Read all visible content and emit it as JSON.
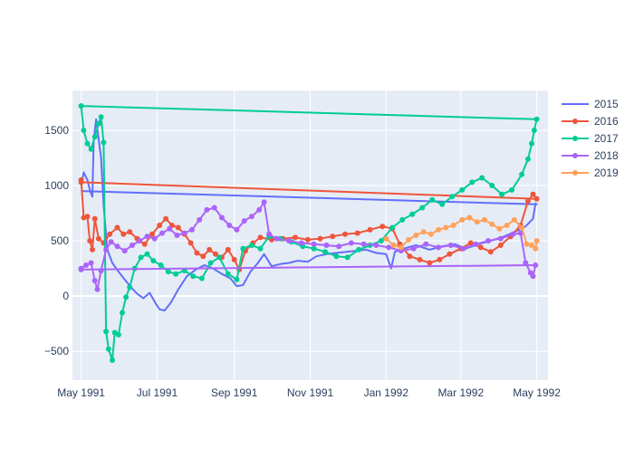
{
  "chart_data": {
    "type": "line",
    "title": "",
    "xlabel": "",
    "ylabel": "",
    "x_tick_labels": [
      "May 1991",
      "Jul 1991",
      "Sep 1991",
      "Nov 1991",
      "Jan 1992",
      "Mar 1992",
      "May 1992"
    ],
    "x_ticks": [
      "1991-05-01",
      "1991-07-01",
      "1991-09-01",
      "1991-11-01",
      "1992-01-01",
      "1992-03-01",
      "1992-05-01"
    ],
    "y_ticks": [
      -500,
      0,
      500,
      1000,
      1500
    ],
    "y_tick_labels": [
      "−500",
      "0",
      "500",
      "1000",
      "1500"
    ],
    "xlim": [
      "1991-04-24",
      "1992-05-10"
    ],
    "ylim": [
      -760,
      1860
    ],
    "grid": true,
    "legend_position": "right",
    "colors": {
      "plot_background": "#e5ecf6",
      "grid": "#ffffff",
      "axis_text": "#2a3f5f"
    },
    "series": [
      {
        "name": "2015",
        "color": "#636efa",
        "markers": false,
        "points": [
          [
            "1991-05-01",
            1000
          ],
          [
            "1991-05-03",
            1120
          ],
          [
            "1991-05-06",
            1050
          ],
          [
            "1991-05-08",
            960
          ],
          [
            "1991-05-10",
            900
          ],
          [
            "1991-05-11",
            1400
          ],
          [
            "1991-05-13",
            1600
          ],
          [
            "1991-05-15",
            1420
          ],
          [
            "1991-05-17",
            1250
          ],
          [
            "1991-05-19",
            820
          ],
          [
            "1991-05-22",
            420
          ],
          [
            "1991-05-26",
            300
          ],
          [
            "1991-05-31",
            220
          ],
          [
            "1991-06-05",
            150
          ],
          [
            "1991-06-10",
            80
          ],
          [
            "1991-06-15",
            20
          ],
          [
            "1991-06-20",
            -20
          ],
          [
            "1991-06-25",
            30
          ],
          [
            "1991-06-30",
            -70
          ],
          [
            "1991-07-03",
            -120
          ],
          [
            "1991-07-07",
            -130
          ],
          [
            "1991-07-12",
            -60
          ],
          [
            "1991-07-18",
            60
          ],
          [
            "1991-07-25",
            180
          ],
          [
            "1991-08-01",
            240
          ],
          [
            "1991-08-08",
            280
          ],
          [
            "1991-08-15",
            250
          ],
          [
            "1991-08-22",
            200
          ],
          [
            "1991-08-29",
            160
          ],
          [
            "1991-09-03",
            90
          ],
          [
            "1991-09-08",
            100
          ],
          [
            "1991-09-14",
            220
          ],
          [
            "1991-09-20",
            300
          ],
          [
            "1991-09-25",
            380
          ],
          [
            "1991-10-01",
            270
          ],
          [
            "1991-10-08",
            290
          ],
          [
            "1991-10-15",
            300
          ],
          [
            "1991-10-22",
            320
          ],
          [
            "1991-10-30",
            310
          ],
          [
            "1991-11-06",
            360
          ],
          [
            "1991-11-14",
            380
          ],
          [
            "1991-11-22",
            390
          ],
          [
            "1991-11-30",
            400
          ],
          [
            "1991-12-08",
            410
          ],
          [
            "1991-12-16",
            420
          ],
          [
            "1991-12-24",
            390
          ],
          [
            "1992-01-01",
            380
          ],
          [
            "1992-01-05",
            250
          ],
          [
            "1992-01-08",
            400
          ],
          [
            "1992-01-15",
            430
          ],
          [
            "1992-01-25",
            460
          ],
          [
            "1992-02-05",
            420
          ],
          [
            "1992-02-15",
            450
          ],
          [
            "1992-02-25",
            470
          ],
          [
            "1992-03-05",
            430
          ],
          [
            "1992-03-15",
            470
          ],
          [
            "1992-03-25",
            500
          ],
          [
            "1992-04-05",
            540
          ],
          [
            "1992-04-15",
            590
          ],
          [
            "1992-04-22",
            630
          ],
          [
            "1992-04-28",
            700
          ],
          [
            "1992-04-30",
            840
          ],
          [
            "1992-05-01",
            830
          ],
          [
            "1991-05-01",
            950
          ]
        ]
      },
      {
        "name": "2016",
        "color": "#ef553b",
        "markers": true,
        "points": [
          [
            "1991-05-01",
            1050
          ],
          [
            "1991-05-03",
            710
          ],
          [
            "1991-05-06",
            720
          ],
          [
            "1991-05-08",
            500
          ],
          [
            "1991-05-10",
            420
          ],
          [
            "1991-05-12",
            700
          ],
          [
            "1991-05-15",
            520
          ],
          [
            "1991-05-19",
            480
          ],
          [
            "1991-05-24",
            560
          ],
          [
            "1991-05-30",
            620
          ],
          [
            "1991-06-04",
            560
          ],
          [
            "1991-06-09",
            580
          ],
          [
            "1991-06-15",
            520
          ],
          [
            "1991-06-21",
            470
          ],
          [
            "1991-06-27",
            560
          ],
          [
            "1991-07-03",
            640
          ],
          [
            "1991-07-08",
            700
          ],
          [
            "1991-07-13",
            640
          ],
          [
            "1991-07-18",
            620
          ],
          [
            "1991-07-23",
            560
          ],
          [
            "1991-07-28",
            480
          ],
          [
            "1991-08-02",
            390
          ],
          [
            "1991-08-07",
            360
          ],
          [
            "1991-08-12",
            420
          ],
          [
            "1991-08-17",
            380
          ],
          [
            "1991-08-22",
            350
          ],
          [
            "1991-08-27",
            420
          ],
          [
            "1991-09-01",
            330
          ],
          [
            "1991-09-05",
            240
          ],
          [
            "1991-09-10",
            410
          ],
          [
            "1991-09-16",
            480
          ],
          [
            "1991-09-22",
            530
          ],
          [
            "1991-10-01",
            510
          ],
          [
            "1991-10-10",
            520
          ],
          [
            "1991-10-20",
            530
          ],
          [
            "1991-10-30",
            510
          ],
          [
            "1991-11-09",
            520
          ],
          [
            "1991-11-19",
            540
          ],
          [
            "1991-11-29",
            560
          ],
          [
            "1991-12-09",
            570
          ],
          [
            "1991-12-19",
            600
          ],
          [
            "1991-12-29",
            630
          ],
          [
            "1992-01-06",
            610
          ],
          [
            "1992-01-12",
            470
          ],
          [
            "1992-01-20",
            360
          ],
          [
            "1992-01-28",
            330
          ],
          [
            "1992-02-05",
            300
          ],
          [
            "1992-02-13",
            330
          ],
          [
            "1992-02-21",
            380
          ],
          [
            "1992-03-01",
            430
          ],
          [
            "1992-03-09",
            480
          ],
          [
            "1992-03-17",
            440
          ],
          [
            "1992-03-25",
            400
          ],
          [
            "1992-04-02",
            460
          ],
          [
            "1992-04-10",
            540
          ],
          [
            "1992-04-18",
            640
          ],
          [
            "1992-04-24",
            860
          ],
          [
            "1992-04-28",
            920
          ],
          [
            "1992-05-01",
            880
          ],
          [
            "1991-05-01",
            1030
          ]
        ]
      },
      {
        "name": "2017",
        "color": "#00cc96",
        "markers": true,
        "points": [
          [
            "1991-05-01",
            1720
          ],
          [
            "1991-05-03",
            1500
          ],
          [
            "1991-05-06",
            1380
          ],
          [
            "1991-05-09",
            1330
          ],
          [
            "1991-05-12",
            1440
          ],
          [
            "1991-05-15",
            1560
          ],
          [
            "1991-05-17",
            1620
          ],
          [
            "1991-05-19",
            1390
          ],
          [
            "1991-05-21",
            -320
          ],
          [
            "1991-05-23",
            -480
          ],
          [
            "1991-05-26",
            -580
          ],
          [
            "1991-05-28",
            -330
          ],
          [
            "1991-05-31",
            -350
          ],
          [
            "1991-06-03",
            -150
          ],
          [
            "1991-06-06",
            -10
          ],
          [
            "1991-06-09",
            80
          ],
          [
            "1991-06-13",
            250
          ],
          [
            "1991-06-18",
            350
          ],
          [
            "1991-06-23",
            380
          ],
          [
            "1991-06-28",
            320
          ],
          [
            "1991-07-04",
            280
          ],
          [
            "1991-07-10",
            220
          ],
          [
            "1991-07-16",
            200
          ],
          [
            "1991-07-23",
            230
          ],
          [
            "1991-07-30",
            180
          ],
          [
            "1991-08-06",
            160
          ],
          [
            "1991-08-13",
            300
          ],
          [
            "1991-08-20",
            350
          ],
          [
            "1991-08-27",
            200
          ],
          [
            "1991-09-03",
            150
          ],
          [
            "1991-09-08",
            430
          ],
          [
            "1991-09-15",
            460
          ],
          [
            "1991-09-22",
            430
          ],
          [
            "1991-09-29",
            540
          ],
          [
            "1991-10-08",
            520
          ],
          [
            "1991-10-17",
            490
          ],
          [
            "1991-10-26",
            450
          ],
          [
            "1991-11-04",
            430
          ],
          [
            "1991-11-13",
            400
          ],
          [
            "1991-11-22",
            360
          ],
          [
            "1991-12-01",
            350
          ],
          [
            "1991-12-10",
            420
          ],
          [
            "1991-12-19",
            460
          ],
          [
            "1991-12-28",
            500
          ],
          [
            "1992-01-06",
            620
          ],
          [
            "1992-01-14",
            690
          ],
          [
            "1992-01-22",
            740
          ],
          [
            "1992-01-30",
            800
          ],
          [
            "1992-02-07",
            870
          ],
          [
            "1992-02-15",
            830
          ],
          [
            "1992-02-23",
            900
          ],
          [
            "1992-03-02",
            960
          ],
          [
            "1992-03-10",
            1030
          ],
          [
            "1992-03-18",
            1070
          ],
          [
            "1992-03-26",
            1000
          ],
          [
            "1992-04-03",
            920
          ],
          [
            "1992-04-11",
            960
          ],
          [
            "1992-04-19",
            1100
          ],
          [
            "1992-04-24",
            1240
          ],
          [
            "1992-04-27",
            1380
          ],
          [
            "1992-04-29",
            1500
          ],
          [
            "1992-05-01",
            1600
          ],
          [
            "1991-05-01",
            1720
          ]
        ]
      },
      {
        "name": "2018",
        "color": "#ab63fa",
        "markers": true,
        "points": [
          [
            "1991-05-01",
            250
          ],
          [
            "1991-05-05",
            280
          ],
          [
            "1991-05-09",
            300
          ],
          [
            "1991-05-12",
            140
          ],
          [
            "1991-05-14",
            60
          ],
          [
            "1991-05-17",
            230
          ],
          [
            "1991-05-21",
            420
          ],
          [
            "1991-05-25",
            490
          ],
          [
            "1991-05-30",
            450
          ],
          [
            "1991-06-05",
            410
          ],
          [
            "1991-06-11",
            460
          ],
          [
            "1991-06-17",
            500
          ],
          [
            "1991-06-23",
            540
          ],
          [
            "1991-06-29",
            520
          ],
          [
            "1991-07-05",
            570
          ],
          [
            "1991-07-11",
            610
          ],
          [
            "1991-07-17",
            550
          ],
          [
            "1991-07-23",
            570
          ],
          [
            "1991-07-29",
            600
          ],
          [
            "1991-08-04",
            690
          ],
          [
            "1991-08-10",
            780
          ],
          [
            "1991-08-16",
            800
          ],
          [
            "1991-08-22",
            710
          ],
          [
            "1991-08-28",
            640
          ],
          [
            "1991-09-03",
            600
          ],
          [
            "1991-09-09",
            680
          ],
          [
            "1991-09-15",
            720
          ],
          [
            "1991-09-21",
            780
          ],
          [
            "1991-09-25",
            850
          ],
          [
            "1991-09-29",
            560
          ],
          [
            "1991-10-05",
            520
          ],
          [
            "1991-10-15",
            500
          ],
          [
            "1991-10-25",
            480
          ],
          [
            "1991-11-04",
            470
          ],
          [
            "1991-11-14",
            460
          ],
          [
            "1991-11-24",
            450
          ],
          [
            "1991-12-04",
            480
          ],
          [
            "1991-12-14",
            470
          ],
          [
            "1991-12-24",
            460
          ],
          [
            "1992-01-03",
            440
          ],
          [
            "1992-01-13",
            410
          ],
          [
            "1992-01-23",
            430
          ],
          [
            "1992-02-02",
            470
          ],
          [
            "1992-02-12",
            440
          ],
          [
            "1992-02-22",
            460
          ],
          [
            "1992-03-03",
            430
          ],
          [
            "1992-03-13",
            470
          ],
          [
            "1992-03-23",
            500
          ],
          [
            "1992-04-02",
            520
          ],
          [
            "1992-04-12",
            560
          ],
          [
            "1992-04-18",
            570
          ],
          [
            "1992-04-22",
            300
          ],
          [
            "1992-04-26",
            210
          ],
          [
            "1992-04-28",
            180
          ],
          [
            "1992-04-30",
            280
          ],
          [
            "1991-05-01",
            240
          ]
        ]
      },
      {
        "name": "2019",
        "color": "#ffa15a",
        "markers": true,
        "points": [
          [
            "1992-01-01",
            520
          ],
          [
            "1992-01-07",
            460
          ],
          [
            "1992-01-13",
            440
          ],
          [
            "1992-01-19",
            510
          ],
          [
            "1992-01-25",
            550
          ],
          [
            "1992-01-31",
            580
          ],
          [
            "1992-02-06",
            560
          ],
          [
            "1992-02-12",
            600
          ],
          [
            "1992-02-18",
            620
          ],
          [
            "1992-02-24",
            640
          ],
          [
            "1992-03-02",
            690
          ],
          [
            "1992-03-08",
            710
          ],
          [
            "1992-03-14",
            670
          ],
          [
            "1992-03-20",
            690
          ],
          [
            "1992-03-26",
            650
          ],
          [
            "1992-04-01",
            610
          ],
          [
            "1992-04-07",
            640
          ],
          [
            "1992-04-13",
            690
          ],
          [
            "1992-04-19",
            620
          ],
          [
            "1992-04-23",
            470
          ],
          [
            "1992-04-27",
            460
          ],
          [
            "1992-04-30",
            430
          ],
          [
            "1992-05-01",
            500
          ]
        ]
      }
    ]
  }
}
